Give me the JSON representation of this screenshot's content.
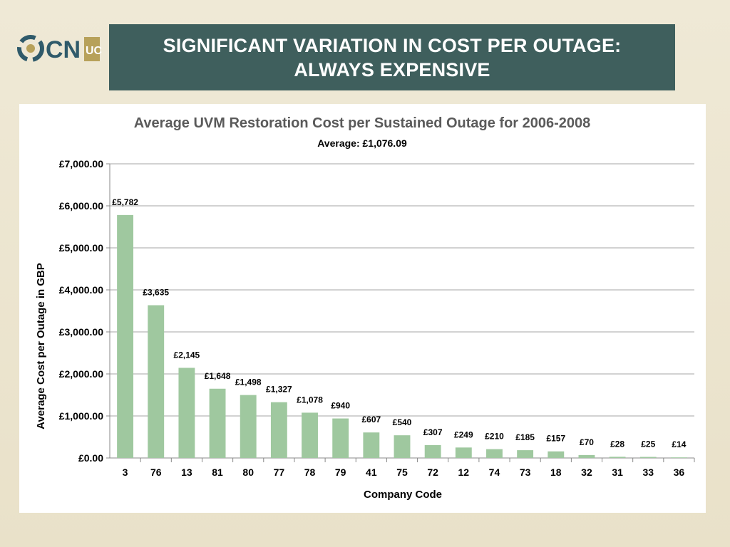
{
  "slide": {
    "title_line1": "SIGNIFICANT VARIATION IN COST PER OUTAGE:",
    "title_line2": "ALWAYS EXPENSIVE",
    "logo_text": "CN",
    "logo_small_text": "UC"
  },
  "colors": {
    "title_bg": "#3f5f5d",
    "bar": "#9fc89f",
    "title_text": "#5a5a5a"
  },
  "chart_data": {
    "type": "bar",
    "title": "Average UVM Restoration Cost per Sustained Outage for 2006-2008",
    "subtitle": "Average: £1,076.09",
    "xlabel": "Company Code",
    "ylabel": "Average Cost per Outage in  GBP",
    "ylim": [
      0,
      7000
    ],
    "yticks": [
      0,
      1000,
      2000,
      3000,
      4000,
      5000,
      6000,
      7000
    ],
    "ytick_labels": [
      "£0.00",
      "£1,000.00",
      "£2,000.00",
      "£3,000.00",
      "£4,000.00",
      "£5,000.00",
      "£6,000.00",
      "£7,000.00"
    ],
    "grid": true,
    "categories": [
      "3",
      "76",
      "13",
      "81",
      "80",
      "77",
      "78",
      "79",
      "41",
      "75",
      "72",
      "12",
      "74",
      "73",
      "18",
      "32",
      "31",
      "33",
      "36"
    ],
    "values": [
      5782,
      3635,
      2145,
      1648,
      1498,
      1327,
      1078,
      940,
      607,
      540,
      307,
      249,
      210,
      185,
      157,
      70,
      28,
      25,
      14
    ],
    "data_labels": [
      "£5,782",
      "£3,635",
      "£2,145",
      "£1,648",
      "£1,498",
      "£1,327",
      "£1,078",
      "£940",
      "£607",
      "£540",
      "£307",
      "£249",
      "£210",
      "£185",
      "£157",
      "£70",
      "£28",
      "£25",
      "£14"
    ]
  }
}
